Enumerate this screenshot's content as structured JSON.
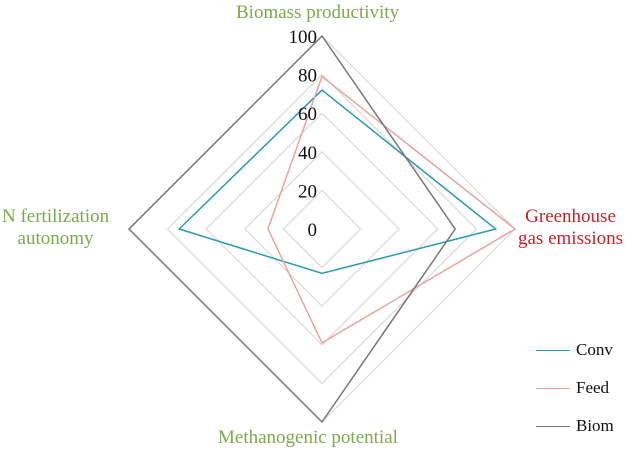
{
  "chart_data": {
    "type": "radar",
    "title": "",
    "axes": [
      "Biomass productivity",
      "Greenhouse gas emissions",
      "Methanogenic potential",
      "N fertilization autonomy"
    ],
    "axis_labels": {
      "top": "Biomass productivity",
      "right_line1": "Greenhouse",
      "right_line2": "gas emissions",
      "bottom": "Methanogenic potential",
      "left_line1": "N fertilization",
      "left_line2": "autonomy"
    },
    "axis_label_colors": [
      "#7aab4a",
      "#c0262b",
      "#7aab4a",
      "#7aab4a"
    ],
    "range": [
      0,
      100
    ],
    "ticks": [
      "0",
      "20",
      "40",
      "60",
      "80",
      "100"
    ],
    "tick_values": [
      0,
      20,
      40,
      60,
      80,
      100
    ],
    "grid": true,
    "legend_position": "bottom-right",
    "series": [
      {
        "name": "Conv",
        "color": "#2a9bb2",
        "values": [
          72,
          90,
          23,
          74
        ]
      },
      {
        "name": "Feed",
        "color": "#e8a3a3",
        "values": [
          79,
          100,
          59,
          28
        ]
      },
      {
        "name": "Biom",
        "color": "#777777",
        "values": [
          100,
          69,
          100,
          100
        ]
      }
    ]
  }
}
